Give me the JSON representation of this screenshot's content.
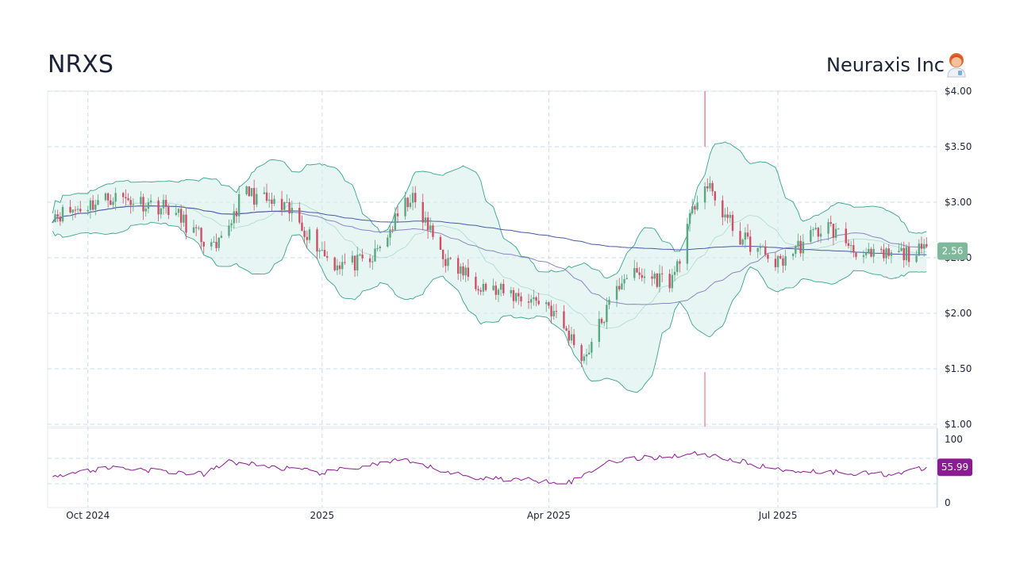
{
  "header": {
    "ticker": "NRXS",
    "company": "Neuraxis Inc",
    "avatar_icon": "scientist-woman-icon"
  },
  "colors": {
    "up": "#5aa882",
    "down": "#cf4f67",
    "band_fill": "#d6eee9",
    "band_line": "#3aa48c",
    "sma_long": "#4759a8",
    "sma_short": "#8a85c8",
    "rsi": "#8c1a94",
    "grid": "#c9dde6",
    "price_badge": "#7fb89a",
    "rsi_badge": "#8c1a94"
  },
  "price_badge": "2.56",
  "rsi_badge": "55.99",
  "chart_data": {
    "type": "candlestick",
    "x_ticks": [
      "Oct 2024",
      "2025",
      "Apr 2025",
      "Jul 2025"
    ],
    "price_axis": {
      "ticks": [
        {
          "value": 4.0,
          "label": "$4.00"
        },
        {
          "value": 3.5,
          "label": "$3.50"
        },
        {
          "value": 3.0,
          "label": "$3.00"
        },
        {
          "value": 2.5,
          "label": "$2.50"
        },
        {
          "value": 2.0,
          "label": "$2.00"
        },
        {
          "value": 1.5,
          "label": "$1.50"
        },
        {
          "value": 1.0,
          "label": "$1.00"
        }
      ],
      "range": [
        1.0,
        4.0
      ]
    },
    "rsi_axis": {
      "ticks": [
        {
          "value": 100,
          "label": "100"
        },
        {
          "value": 0,
          "label": "0"
        }
      ],
      "range": [
        0,
        100
      ],
      "bands": [
        70,
        30
      ]
    },
    "price_path": [
      {
        "date": "2024-09-20",
        "close": 2.9
      },
      {
        "date": "2024-10-10",
        "close": 3.05
      },
      {
        "date": "2024-11-01",
        "close": 2.95
      },
      {
        "date": "2024-11-20",
        "close": 2.55
      },
      {
        "date": "2024-12-01",
        "close": 3.1
      },
      {
        "date": "2024-12-20",
        "close": 2.9
      },
      {
        "date": "2025-01-05",
        "close": 2.45
      },
      {
        "date": "2025-01-20",
        "close": 2.45
      },
      {
        "date": "2025-02-05",
        "close": 3.05
      },
      {
        "date": "2025-02-20",
        "close": 2.45
      },
      {
        "date": "2025-03-10",
        "close": 2.2
      },
      {
        "date": "2025-03-31",
        "close": 2.1
      },
      {
        "date": "2025-04-15",
        "close": 1.6
      },
      {
        "date": "2025-05-01",
        "close": 2.35
      },
      {
        "date": "2025-05-20",
        "close": 2.3
      },
      {
        "date": "2025-06-01",
        "close": 3.2
      },
      {
        "date": "2025-06-15",
        "close": 2.7
      },
      {
        "date": "2025-07-01",
        "close": 2.45
      },
      {
        "date": "2025-07-20",
        "close": 2.8
      },
      {
        "date": "2025-08-05",
        "close": 2.5
      },
      {
        "date": "2025-08-31",
        "close": 2.56
      }
    ],
    "spike": {
      "date": "2025-06-02",
      "high": 4.0,
      "low": 1.47
    },
    "rsi_path": [
      {
        "date": "2024-09-20",
        "value": 45
      },
      {
        "date": "2024-10-10",
        "value": 56
      },
      {
        "date": "2024-11-15",
        "value": 45
      },
      {
        "date": "2024-11-25",
        "value": 65
      },
      {
        "date": "2025-01-01",
        "value": 47
      },
      {
        "date": "2025-02-01",
        "value": 67
      },
      {
        "date": "2025-03-01",
        "value": 40
      },
      {
        "date": "2025-04-10",
        "value": 33
      },
      {
        "date": "2025-04-25",
        "value": 66
      },
      {
        "date": "2025-06-01",
        "value": 78
      },
      {
        "date": "2025-07-01",
        "value": 52
      },
      {
        "date": "2025-08-15",
        "value": 45
      },
      {
        "date": "2025-08-31",
        "value": 55.99
      }
    ]
  }
}
